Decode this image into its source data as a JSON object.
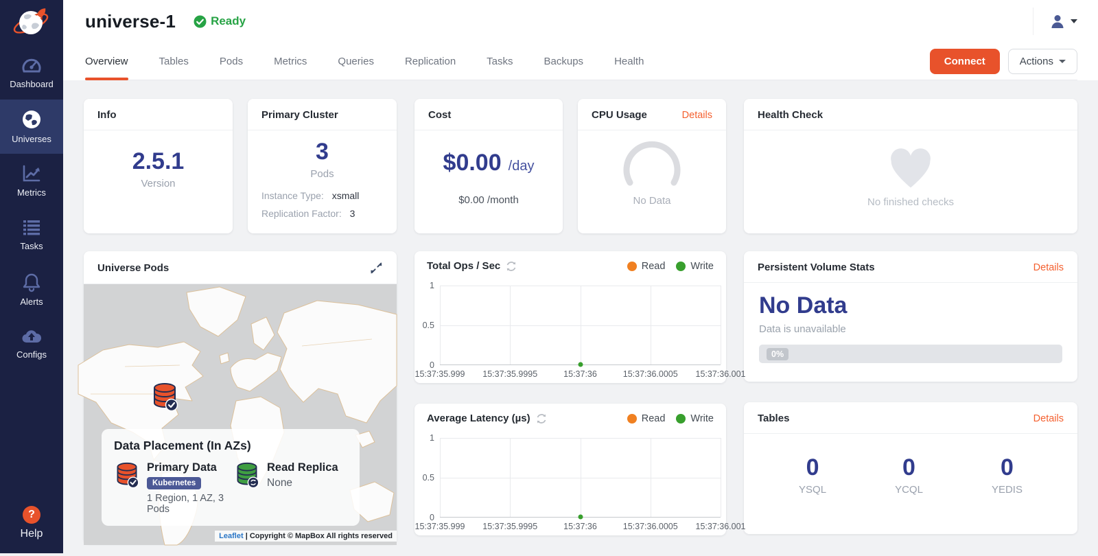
{
  "colors": {
    "accent_orange": "#e8522b",
    "details_orange": "#f4602f",
    "status_green": "#27a345",
    "value_navy": "#313c8d",
    "sidebar_bg": "#1b2143",
    "sidebar_active": "#2e3a68",
    "sidebar_icon": "#5d6ca6",
    "badge_indigo": "#4c5996",
    "link_blue": "#2a76c6",
    "map_water": "#d2d3d4",
    "map_land": "#fbfbfb",
    "map_border": "#dcc09a"
  },
  "sidebar": {
    "items": [
      {
        "label": "Dashboard",
        "icon": "gauge"
      },
      {
        "label": "Universes",
        "icon": "globe",
        "active": true
      },
      {
        "label": "Metrics",
        "icon": "line-chart"
      },
      {
        "label": "Tasks",
        "icon": "list"
      },
      {
        "label": "Alerts",
        "icon": "bell"
      },
      {
        "label": "Configs",
        "icon": "cloud-upload"
      }
    ],
    "help": {
      "label": "Help",
      "icon": "question-mark"
    }
  },
  "header": {
    "title": "universe-1",
    "status": "Ready"
  },
  "tabs": {
    "items": [
      "Overview",
      "Tables",
      "Pods",
      "Metrics",
      "Queries",
      "Replication",
      "Tasks",
      "Backups",
      "Health"
    ],
    "active": "Overview",
    "connect": "Connect",
    "actions": "Actions"
  },
  "cards": {
    "info": {
      "title": "Info",
      "value": "2.5.1",
      "label": "Version"
    },
    "primary_cluster": {
      "title": "Primary Cluster",
      "value": "3",
      "label": "Pods",
      "instance_type_label": "Instance Type:",
      "instance_type": "xsmall",
      "replication_factor_label": "Replication Factor:",
      "replication_factor": "3"
    },
    "cost": {
      "title": "Cost",
      "amount": "$0.00",
      "per": "/day",
      "monthly": "$0.00 /month"
    },
    "cpu": {
      "title": "CPU Usage",
      "details": "Details",
      "empty": "No Data"
    },
    "health": {
      "title": "Health Check",
      "empty": "No finished checks"
    },
    "pods_map": {
      "title": "Universe Pods",
      "placement": {
        "heading": "Data Placement (In AZs)",
        "primary": {
          "label": "Primary Data",
          "badge": "Kubernetes",
          "detail": "1 Region, 1 AZ, 3 Pods"
        },
        "replica": {
          "label": "Read Replica",
          "detail": "None"
        }
      },
      "attribution": {
        "link": "Leaflet",
        "text": "| Copyright © MapBox All rights reserved"
      }
    },
    "pvs": {
      "title": "Persistent Volume Stats",
      "details": "Details",
      "value": "No Data",
      "sub": "Data is unavailable",
      "progress": "0%"
    },
    "tables": {
      "title": "Tables",
      "details": "Details",
      "stats": [
        {
          "value": "0",
          "label": "YSQL"
        },
        {
          "value": "0",
          "label": "YCQL"
        },
        {
          "value": "0",
          "label": "YEDIS"
        }
      ]
    }
  },
  "chart_data": [
    {
      "type": "line",
      "title": "Total Ops / Sec",
      "x_ticks": [
        "15:37:35.999",
        "15:37:35.9995",
        "15:37:36",
        "15:37:36.0005",
        "15:37:36.001"
      ],
      "y_ticks": [
        0,
        0.5,
        1
      ],
      "ylim": [
        0,
        1
      ],
      "grid": true,
      "legend_position": "top-right",
      "series": [
        {
          "name": "Read",
          "color": "#f08021",
          "points": []
        },
        {
          "name": "Write",
          "color": "#389f2d",
          "points": [
            {
              "x": "15:37:36",
              "y": 0
            }
          ]
        }
      ]
    },
    {
      "type": "line",
      "title": "Average Latency (µs)",
      "x_ticks": [
        "15:37:35.999",
        "15:37:35.9995",
        "15:37:36",
        "15:37:36.0005",
        "15:37:36.001"
      ],
      "y_ticks": [
        0,
        0.5,
        1
      ],
      "ylim": [
        0,
        1
      ],
      "grid": true,
      "legend_position": "top-right",
      "series": [
        {
          "name": "Read",
          "color": "#f08021",
          "points": []
        },
        {
          "name": "Write",
          "color": "#389f2d",
          "points": [
            {
              "x": "15:37:36",
              "y": 0
            }
          ]
        }
      ]
    }
  ]
}
